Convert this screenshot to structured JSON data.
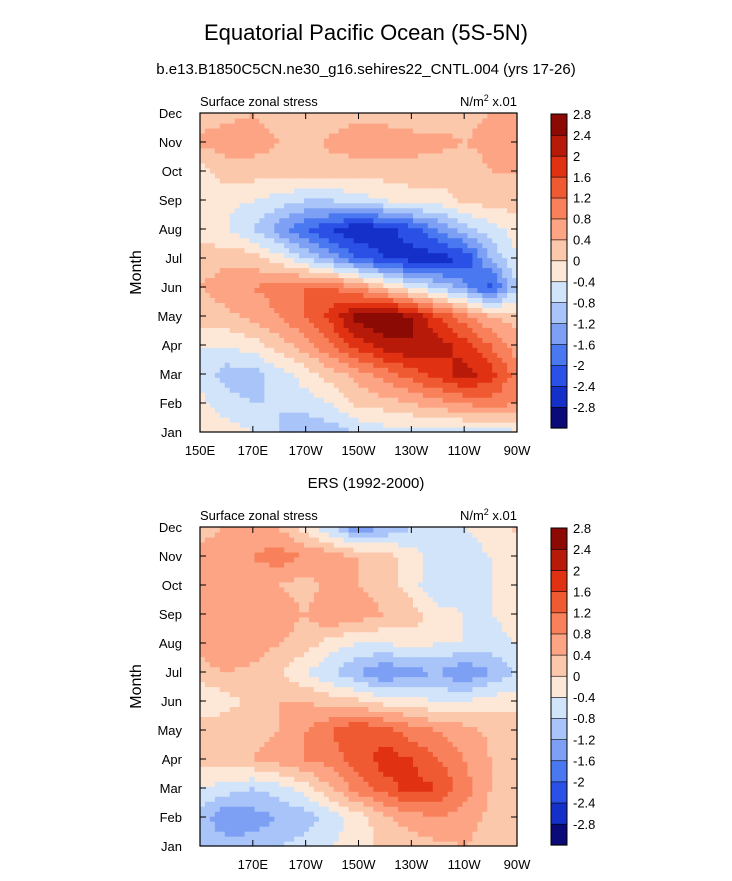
{
  "title": "Equatorial Pacific Ocean (5S-5N)",
  "subtitle": "b.e13.B1850C5CN.ne30_g16.sehires22_CNTL.004 (yrs 17-26)",
  "colors": [
    "#0a0a78",
    "#1430c8",
    "#2a50e6",
    "#4a78f0",
    "#7ea0f4",
    "#a8c4f8",
    "#d2e4fa",
    "#fde8d8",
    "#fcc8ac",
    "#fca484",
    "#f8805a",
    "#f05a32",
    "#e03212",
    "#b81a0a",
    "#8c0a04"
  ],
  "chart_data": [
    {
      "type": "heatmap",
      "panel_title": "",
      "left_label": "Surface zonal stress",
      "right_label": "N/m",
      "units_sup": "2",
      "units_suffix": " x.01",
      "ylabel": "Month",
      "x_ticks": [
        "150E",
        "170E",
        "170W",
        "150W",
        "130W",
        "110W",
        "90W"
      ],
      "y_ticks": [
        "Jan",
        "Feb",
        "Mar",
        "Apr",
        "May",
        "Jun",
        "Jul",
        "Aug",
        "Sep",
        "Oct",
        "Nov",
        "Dec"
      ],
      "x_values": [
        "150E",
        "160E",
        "170E",
        "180",
        "170W",
        "160W",
        "150W",
        "140W",
        "130W",
        "120W",
        "110W",
        "100W",
        "90W"
      ],
      "levels": [
        "-2.8",
        "-2.4",
        "-2",
        "-1.6",
        "-1.2",
        "-0.8",
        "-0.4",
        "0",
        "0.4",
        "0.8",
        "1.2",
        "1.6",
        "2",
        "2.4",
        "2.8"
      ],
      "values": [
        [
          -0.3,
          -0.2,
          -0.4,
          -0.8,
          -1.2,
          -1.0,
          -0.8,
          -0.6,
          -0.6,
          -0.6,
          -0.6,
          -0.6,
          -0.5
        ],
        [
          -0.3,
          -0.6,
          -0.8,
          -0.8,
          -0.6,
          -0.4,
          0.1,
          0.2,
          0.4,
          0.6,
          0.8,
          1.0,
          0.8
        ],
        [
          -0.5,
          -1.0,
          -1.0,
          -0.6,
          -0.2,
          0.2,
          0.6,
          1.0,
          1.4,
          1.8,
          2.2,
          1.8,
          1.0
        ],
        [
          -0.4,
          -0.4,
          -0.2,
          0.2,
          0.6,
          1.2,
          1.8,
          2.2,
          2.4,
          2.2,
          1.8,
          1.2,
          0.6
        ],
        [
          0.2,
          0.3,
          0.5,
          0.8,
          1.2,
          1.8,
          2.6,
          2.8,
          2.4,
          1.6,
          1.0,
          0.4,
          0.2
        ],
        [
          0.4,
          0.6,
          0.8,
          1.0,
          1.2,
          1.2,
          0.8,
          0.2,
          -0.4,
          -0.8,
          -1.4,
          -2.2,
          -0.8
        ],
        [
          0.2,
          0.3,
          0.2,
          -0.2,
          -0.8,
          -1.4,
          -2.0,
          -2.4,
          -2.6,
          -2.6,
          -2.4,
          -1.2,
          -0.4
        ],
        [
          -0.2,
          -0.4,
          -0.8,
          -1.4,
          -2.0,
          -2.4,
          -2.8,
          -2.6,
          -2.2,
          -1.6,
          -1.0,
          -0.6,
          -0.2
        ],
        [
          -0.2,
          -0.3,
          -0.4,
          -0.6,
          -0.8,
          -0.8,
          -0.6,
          -0.4,
          -0.2,
          -0.2,
          0.1,
          0.2,
          0.2
        ],
        [
          -0.2,
          0.2,
          0.2,
          0.2,
          0.2,
          0.2,
          0.2,
          0.2,
          0.2,
          0.2,
          0.2,
          0.4,
          0.4
        ],
        [
          0.5,
          0.6,
          0.6,
          0.4,
          0.2,
          0.5,
          0.6,
          0.7,
          0.6,
          0.5,
          0.4,
          0.5,
          0.6
        ],
        [
          0.2,
          0.3,
          0.4,
          0.2,
          0.1,
          0.2,
          0.3,
          0.2,
          0.1,
          0.2,
          0.3,
          0.4,
          0.5
        ]
      ]
    },
    {
      "type": "heatmap",
      "panel_title": "ERS (1992-2000)",
      "left_label": "Surface zonal stress",
      "right_label": "N/m",
      "units_sup": "2",
      "units_suffix": " x.01",
      "ylabel": "Month",
      "x_ticks": [
        "",
        "170E",
        "170W",
        "150W",
        "130W",
        "110W",
        "90W"
      ],
      "y_ticks": [
        "Jan",
        "Feb",
        "Mar",
        "Apr",
        "May",
        "Jun",
        "Jul",
        "Aug",
        "Sep",
        "Oct",
        "Nov",
        "Dec"
      ],
      "x_values": [
        "150E",
        "160E",
        "170E",
        "180",
        "170W",
        "160W",
        "150W",
        "140W",
        "130W",
        "120W",
        "110W",
        "100W",
        "90W"
      ],
      "levels": [
        "-2.8",
        "-2.4",
        "-2",
        "-1.6",
        "-1.2",
        "-0.8",
        "-0.4",
        "0",
        "0.4",
        "0.8",
        "1.2",
        "1.6",
        "2",
        "2.4",
        "2.8"
      ],
      "values": [
        [
          -0.8,
          -1.0,
          -1.0,
          -0.8,
          -0.6,
          -0.4,
          -0.2,
          0.1,
          0.2,
          0.3,
          0.4,
          0.2,
          0.1
        ],
        [
          -1.0,
          -1.6,
          -1.4,
          -1.2,
          -1.0,
          -0.6,
          -0.2,
          0.3,
          0.6,
          0.8,
          0.6,
          0.3,
          0.1
        ],
        [
          -0.4,
          -0.6,
          -0.8,
          -0.6,
          -0.2,
          0.4,
          1.0,
          1.4,
          1.8,
          1.6,
          1.0,
          0.4,
          0.1
        ],
        [
          0.2,
          0.3,
          0.4,
          0.6,
          0.8,
          1.0,
          1.4,
          1.8,
          1.6,
          1.2,
          0.8,
          0.4,
          0.2
        ],
        [
          0.4,
          0.3,
          0.3,
          0.4,
          0.8,
          1.2,
          1.6,
          1.4,
          1.0,
          0.8,
          0.6,
          0.3,
          0.2
        ],
        [
          -0.4,
          -0.2,
          0.2,
          0.4,
          0.4,
          0.2,
          0.1,
          -0.2,
          -0.2,
          -0.4,
          -0.4,
          -0.2,
          -0.1
        ],
        [
          0.2,
          0.4,
          0.3,
          0.1,
          -0.4,
          -0.8,
          -1.2,
          -1.6,
          -1.4,
          -1.2,
          -1.6,
          -1.2,
          -0.8
        ],
        [
          0.6,
          0.8,
          0.6,
          0.4,
          0.2,
          -0.2,
          -0.4,
          -0.4,
          -0.2,
          -0.4,
          -0.4,
          -0.6,
          -0.4
        ],
        [
          0.4,
          0.6,
          0.8,
          0.6,
          0.4,
          0.8,
          0.6,
          0.4,
          0.2,
          -0.2,
          -0.4,
          -0.4,
          -0.2
        ],
        [
          0.4,
          0.6,
          0.6,
          0.4,
          0.2,
          0.6,
          0.4,
          0.2,
          -0.2,
          -0.8,
          -0.6,
          -0.4,
          -0.2
        ],
        [
          0.6,
          0.8,
          0.8,
          1.0,
          0.8,
          0.6,
          0.4,
          0.2,
          -0.2,
          -0.6,
          -0.6,
          -0.4,
          -0.2
        ],
        [
          0.2,
          0.4,
          0.6,
          0.4,
          -0.2,
          -0.8,
          -1.6,
          -1.2,
          -0.8,
          -0.6,
          -0.4,
          -0.2,
          0.1
        ]
      ]
    }
  ]
}
